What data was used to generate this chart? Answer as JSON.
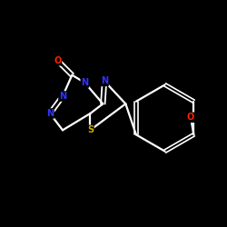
{
  "background_color": "#000000",
  "bond_color": "#ffffff",
  "atom_colors": {
    "N": "#3333ff",
    "O": "#ff2200",
    "S": "#ccaa00",
    "C": "#ffffff"
  },
  "figsize": [
    2.5,
    2.5
  ],
  "dpi": 100,
  "xlim": [
    0,
    10
  ],
  "ylim": [
    0,
    10
  ]
}
